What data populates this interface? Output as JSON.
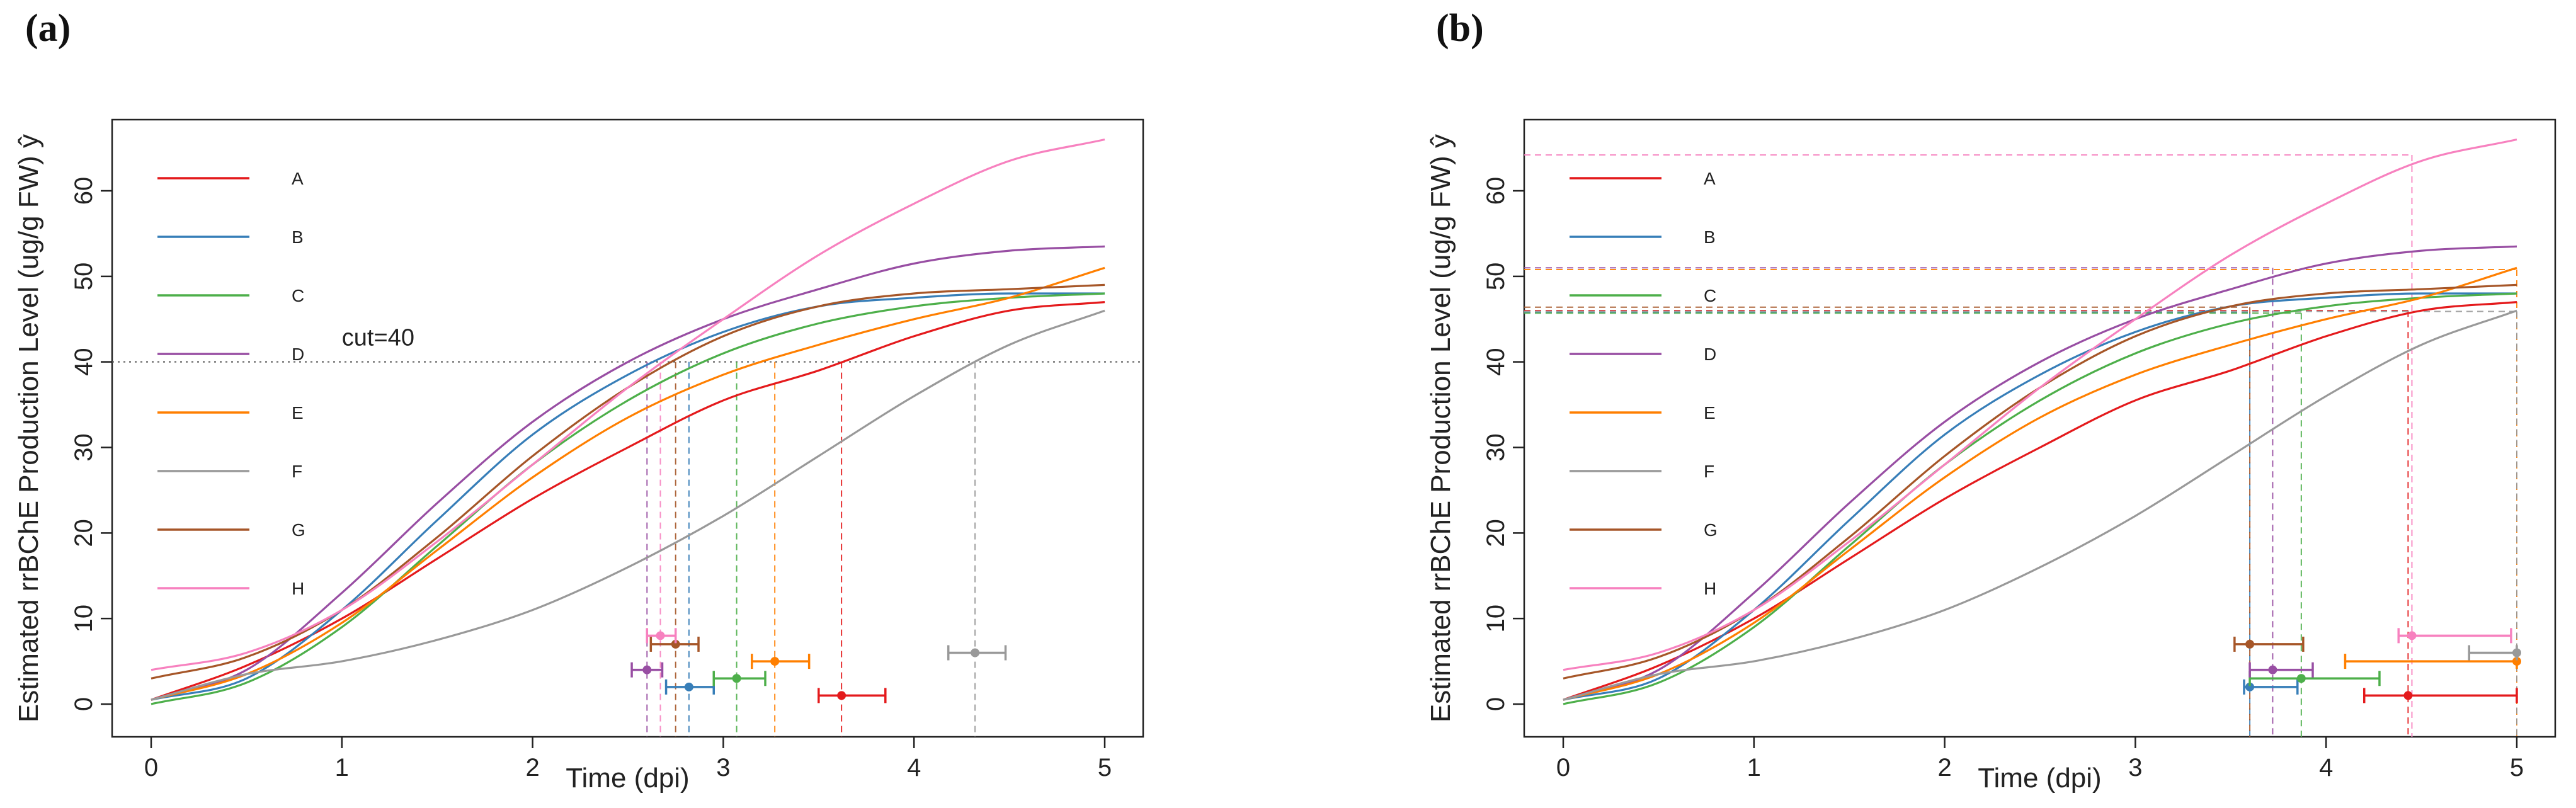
{
  "panels": [
    {
      "label": "(a)"
    },
    {
      "label": "(b)"
    }
  ],
  "colors": {
    "A": "#e41a1c",
    "B": "#377eb8",
    "C": "#4daf4a",
    "D": "#984ea3",
    "E": "#ff7f00",
    "F": "#999999",
    "G": "#a65628",
    "H": "#f781bf"
  },
  "chart_data": [
    {
      "type": "line",
      "panel": "(a)",
      "xlabel": "Time (dpi)",
      "ylabel": "Estimated rrBChE Production Level (ug/g FW) ŷ",
      "xlim": [
        0,
        5
      ],
      "ylim": [
        0,
        65
      ],
      "xticks": [
        0,
        1,
        2,
        3,
        4,
        5
      ],
      "yticks": [
        0,
        10,
        20,
        30,
        40,
        50,
        60
      ],
      "legend_position": "top-left",
      "annotation": "cut=40",
      "cut": 40,
      "series": [
        {
          "name": "A",
          "x": [
            0,
            0.5,
            1,
            1.5,
            2,
            2.5,
            3,
            3.5,
            4,
            4.5,
            5
          ],
          "y": [
            0.5,
            4.5,
            10,
            17,
            24,
            30,
            35.5,
            39,
            43,
            46,
            47
          ]
        },
        {
          "name": "B",
          "x": [
            0,
            0.5,
            1,
            1.5,
            2,
            2.5,
            3,
            3.5,
            4,
            4.5,
            5
          ],
          "y": [
            0.5,
            3,
            11,
            21.5,
            31.5,
            38.5,
            43.5,
            46.5,
            47.5,
            48,
            48
          ]
        },
        {
          "name": "C",
          "x": [
            0,
            0.5,
            1,
            1.5,
            2,
            2.5,
            3,
            3.5,
            4,
            4.5,
            5
          ],
          "y": [
            0,
            2.5,
            9,
            18.5,
            28,
            35.5,
            41,
            44.5,
            46.5,
            47.5,
            48
          ]
        },
        {
          "name": "D",
          "x": [
            0,
            0.5,
            1,
            1.5,
            2,
            2.5,
            3,
            3.5,
            4,
            4.5,
            5
          ],
          "y": [
            0.5,
            4,
            13,
            23.5,
            33,
            40,
            45,
            48.5,
            51.5,
            53,
            53.5
          ]
        },
        {
          "name": "E",
          "x": [
            0,
            0.5,
            1,
            1.5,
            2,
            2.5,
            3,
            3.5,
            4,
            4.5,
            5
          ],
          "y": [
            0.5,
            3.5,
            9.5,
            18,
            26.5,
            33.5,
            38.5,
            42,
            45,
            47.5,
            51
          ]
        },
        {
          "name": "F",
          "x": [
            0,
            0.5,
            1,
            1.5,
            2,
            2.5,
            3,
            3.5,
            4,
            4.5,
            5
          ],
          "y": [
            0.5,
            3.5,
            5,
            7.5,
            11,
            16,
            22,
            29,
            36,
            42,
            46
          ]
        },
        {
          "name": "G",
          "x": [
            0,
            0.5,
            1,
            1.5,
            2,
            2.5,
            3,
            3.5,
            4,
            4.5,
            5
          ],
          "y": [
            3,
            5.5,
            11,
            19.5,
            29,
            37,
            43,
            46.5,
            48,
            48.5,
            49
          ]
        },
        {
          "name": "H",
          "x": [
            0,
            0.5,
            1,
            1.5,
            2,
            2.5,
            3,
            3.5,
            4,
            4.5,
            5
          ],
          "y": [
            4,
            6,
            11,
            19,
            28,
            37,
            45,
            52.5,
            58.5,
            63.5,
            66
          ]
        }
      ],
      "intervals": [
        {
          "series": "A",
          "y": 1,
          "est": 3.62,
          "low": 3.5,
          "high": 3.85
        },
        {
          "series": "B",
          "y": 2,
          "est": 2.82,
          "low": 2.7,
          "high": 2.95
        },
        {
          "series": "C",
          "y": 3,
          "est": 3.07,
          "low": 2.95,
          "high": 3.22
        },
        {
          "series": "D",
          "y": 4,
          "est": 2.6,
          "low": 2.52,
          "high": 2.68
        },
        {
          "series": "E",
          "y": 5,
          "est": 3.27,
          "low": 3.15,
          "high": 3.45
        },
        {
          "series": "F",
          "y": 6,
          "est": 4.32,
          "low": 4.18,
          "high": 4.48
        },
        {
          "series": "G",
          "y": 7,
          "est": 2.75,
          "low": 2.62,
          "high": 2.87
        },
        {
          "series": "H",
          "y": 8,
          "est": 2.67,
          "low": 2.6,
          "high": 2.75
        }
      ]
    },
    {
      "type": "line",
      "panel": "(b)",
      "xlabel": "Time (dpi)",
      "ylabel": "Estimated rrBChE Production Level (ug/g FW) ŷ",
      "xlim": [
        0,
        5
      ],
      "ylim": [
        0,
        65
      ],
      "xticks": [
        0,
        1,
        2,
        3,
        4,
        5
      ],
      "yticks": [
        0,
        10,
        20,
        30,
        40,
        50,
        60
      ],
      "legend_position": "top-left",
      "series": [
        {
          "name": "A",
          "x": [
            0,
            0.5,
            1,
            1.5,
            2,
            2.5,
            3,
            3.5,
            4,
            4.5,
            5
          ],
          "y": [
            0.5,
            4.5,
            10,
            17,
            24,
            30,
            35.5,
            39,
            43,
            46,
            47
          ]
        },
        {
          "name": "B",
          "x": [
            0,
            0.5,
            1,
            1.5,
            2,
            2.5,
            3,
            3.5,
            4,
            4.5,
            5
          ],
          "y": [
            0.5,
            3,
            11,
            21.5,
            31.5,
            38.5,
            43.5,
            46.5,
            47.5,
            48,
            48
          ]
        },
        {
          "name": "C",
          "x": [
            0,
            0.5,
            1,
            1.5,
            2,
            2.5,
            3,
            3.5,
            4,
            4.5,
            5
          ],
          "y": [
            0,
            2.5,
            9,
            18.5,
            28,
            35.5,
            41,
            44.5,
            46.5,
            47.5,
            48
          ]
        },
        {
          "name": "D",
          "x": [
            0,
            0.5,
            1,
            1.5,
            2,
            2.5,
            3,
            3.5,
            4,
            4.5,
            5
          ],
          "y": [
            0.5,
            4,
            13,
            23.5,
            33,
            40,
            45,
            48.5,
            51.5,
            53,
            53.5
          ]
        },
        {
          "name": "E",
          "x": [
            0,
            0.5,
            1,
            1.5,
            2,
            2.5,
            3,
            3.5,
            4,
            4.5,
            5
          ],
          "y": [
            0.5,
            3.5,
            9.5,
            18,
            26.5,
            33.5,
            38.5,
            42,
            45,
            47.5,
            51
          ]
        },
        {
          "name": "F",
          "x": [
            0,
            0.5,
            1,
            1.5,
            2,
            2.5,
            3,
            3.5,
            4,
            4.5,
            5
          ],
          "y": [
            0.5,
            3.5,
            5,
            7.5,
            11,
            16,
            22,
            29,
            36,
            42,
            46
          ]
        },
        {
          "name": "G",
          "x": [
            0,
            0.5,
            1,
            1.5,
            2,
            2.5,
            3,
            3.5,
            4,
            4.5,
            5
          ],
          "y": [
            3,
            5.5,
            11,
            19.5,
            29,
            37,
            43,
            46.5,
            48,
            48.5,
            49
          ]
        },
        {
          "name": "H",
          "x": [
            0,
            0.5,
            1,
            1.5,
            2,
            2.5,
            3,
            3.5,
            4,
            4.5,
            5
          ],
          "y": [
            4,
            6,
            11,
            19,
            28,
            37,
            45,
            52.5,
            58.5,
            63.5,
            66
          ]
        }
      ],
      "reference_lines": [
        {
          "series": "A",
          "x": 4.43,
          "y": 46
        },
        {
          "series": "B",
          "x": 3.6,
          "y": 45.8
        },
        {
          "series": "C",
          "x": 3.87,
          "y": 45.7
        },
        {
          "series": "D",
          "x": 3.72,
          "y": 51
        },
        {
          "series": "E",
          "x": 5.0,
          "y": 50.8
        },
        {
          "series": "F",
          "x": 5.0,
          "y": 45.9
        },
        {
          "series": "G",
          "x": 3.6,
          "y": 46.4
        },
        {
          "series": "H",
          "x": 4.45,
          "y": 64.2
        }
      ],
      "intervals": [
        {
          "series": "A",
          "y": 1,
          "est": 4.43,
          "low": 4.2,
          "high": 5.0
        },
        {
          "series": "B",
          "y": 2,
          "est": 3.6,
          "low": 3.57,
          "high": 3.85
        },
        {
          "series": "C",
          "y": 3,
          "est": 3.87,
          "low": 3.6,
          "high": 4.28
        },
        {
          "series": "D",
          "y": 4,
          "est": 3.72,
          "low": 3.6,
          "high": 3.93
        },
        {
          "series": "E",
          "y": 5,
          "est": 5.0,
          "low": 4.1,
          "high": 5.0
        },
        {
          "series": "F",
          "y": 6,
          "est": 5.0,
          "low": 4.75,
          "high": 5.0
        },
        {
          "series": "G",
          "y": 7,
          "est": 3.6,
          "low": 3.52,
          "high": 3.88
        },
        {
          "series": "H",
          "y": 8,
          "est": 4.45,
          "low": 4.38,
          "high": 4.97
        }
      ]
    }
  ]
}
